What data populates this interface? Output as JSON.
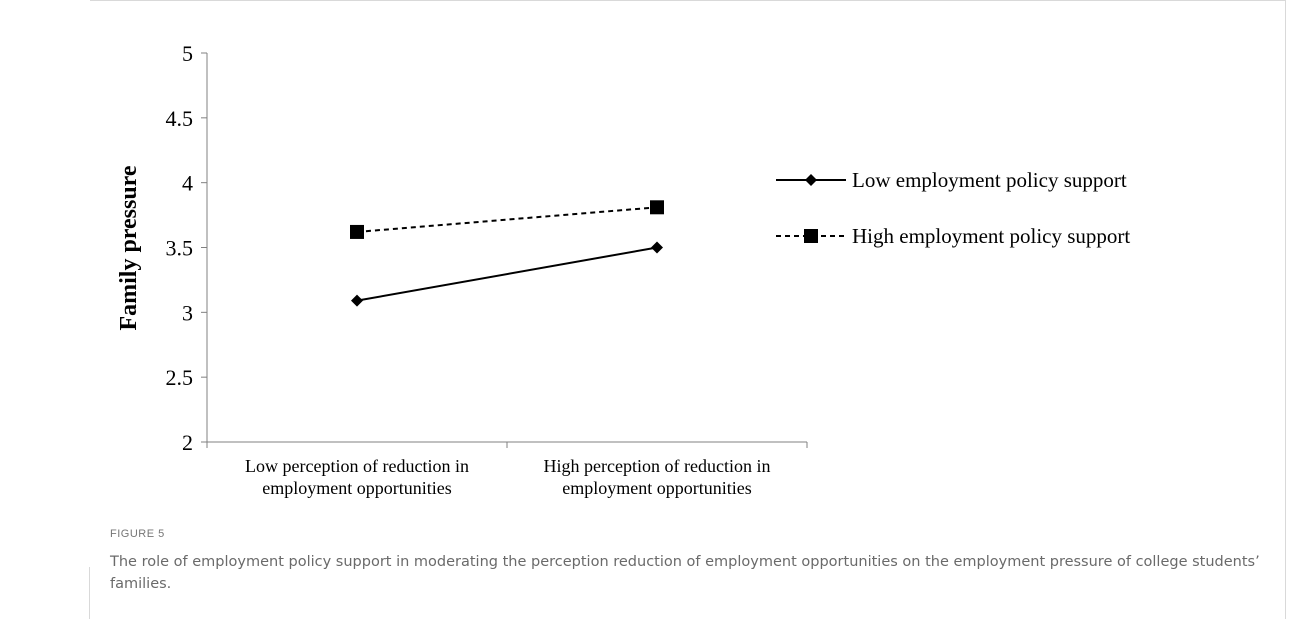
{
  "figure": {
    "label": "FIGURE 5",
    "caption": "The role of employment policy support in moderating the perception reduction of employment opportunities on the employment pressure of college students’ families."
  },
  "chart_data": {
    "type": "line",
    "title": "",
    "xlabel": "",
    "ylabel": "Family pressure",
    "categories": [
      [
        "Low perception of reduction in",
        "employment opportunities"
      ],
      [
        "High perception of reduction in",
        "employment opportunities"
      ]
    ],
    "series": [
      {
        "name": "Low employment policy support",
        "values": [
          3.09,
          3.5
        ],
        "line_style": "solid",
        "marker": "diamond"
      },
      {
        "name": "High employment policy support",
        "values": [
          3.62,
          3.81
        ],
        "line_style": "dashed",
        "marker": "square"
      }
    ],
    "ylim": [
      2,
      5
    ],
    "yticks": [
      "2",
      "2.5",
      "3",
      "3.5",
      "4",
      "4.5",
      "5"
    ],
    "grid": false,
    "legend_position": "right",
    "colors": {
      "line": "#000000",
      "axis": "#808080"
    }
  }
}
